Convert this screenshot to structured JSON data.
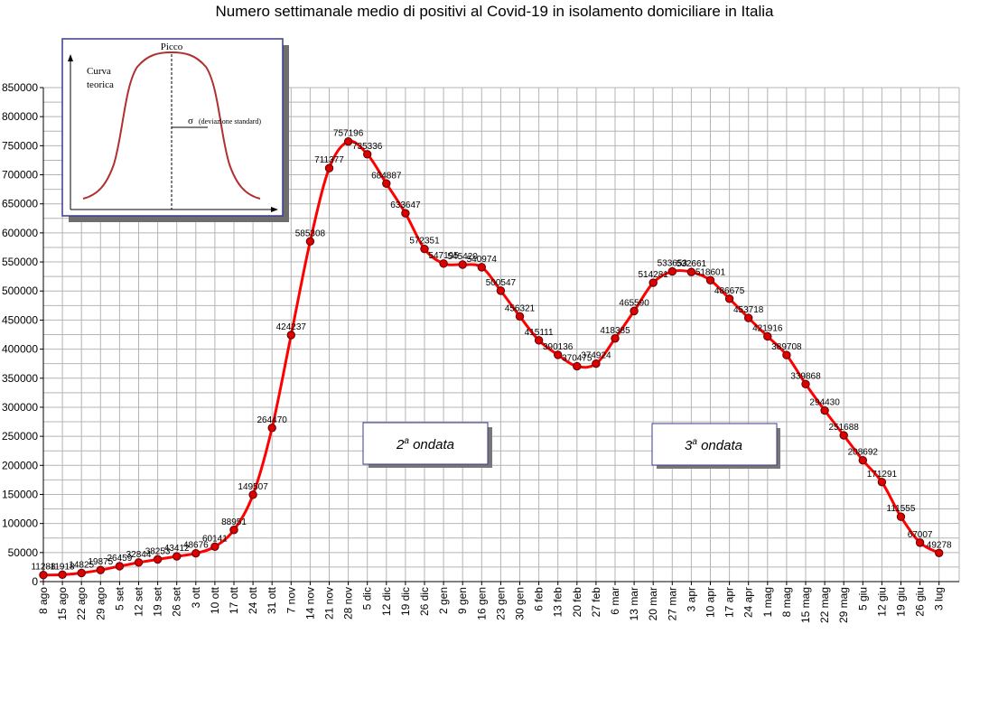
{
  "title": "Numero settimanale medio di positivi al Covid-19  in isolamento domiciliare in Italia",
  "chart_data": {
    "type": "line",
    "title": "Numero settimanale medio di positivi al Covid-19  in isolamento domiciliare in Italia",
    "xlabel": "",
    "ylabel": "",
    "ylim": [
      0,
      850000
    ],
    "yticks": [
      0,
      50000,
      100000,
      150000,
      200000,
      250000,
      300000,
      350000,
      400000,
      450000,
      500000,
      550000,
      600000,
      650000,
      700000,
      750000,
      800000,
      850000
    ],
    "grid": true,
    "categories": [
      "8 ago",
      "15 ago",
      "22 ago",
      "29 ago",
      "5 set",
      "12 set",
      "19 set",
      "26 set",
      "3 ott",
      "10 ott",
      "17 ott",
      "24 ott",
      "31 ott",
      "7 nov",
      "14 nov",
      "21 nov",
      "28 nov",
      "5 dic",
      "12 dic",
      "19 dic",
      "26 dic",
      "2 gen",
      "9 gen",
      "16 gen",
      "23 gen",
      "30 gen",
      "6 feb",
      "13 feb",
      "20 feb",
      "27 feb",
      "6 mar",
      "13 mar",
      "20 mar",
      "27 mar",
      "3 apr",
      "10 apr",
      "17 apr",
      "24 apr",
      "1 mag",
      "8 mag",
      "15 mag",
      "22 mag",
      "29 mag",
      "5 giu",
      "12 giu",
      "19 giu",
      "26 giu",
      "3 lug"
    ],
    "series": [
      {
        "color": "#ff0000",
        "marker_color": "#dd0000",
        "values": [
          11288,
          11918,
          14825,
          19875,
          26459,
          32844,
          38253,
          43412,
          48676,
          60141,
          88951,
          149507,
          264470,
          424237,
          585308,
          711377,
          757196,
          735336,
          684887,
          633647,
          572351,
          547195,
          545420,
          540974,
          500547,
          456321,
          415111,
          390136,
          370475,
          374924,
          418385,
          465590,
          514281,
          533653,
          532661,
          518601,
          486675,
          453718,
          421916,
          389708,
          339868,
          294430,
          251688,
          208692,
          171291,
          111555,
          67007,
          49278
        ],
        "labels": [
          "11288",
          "11918",
          "14825",
          "19875",
          "26459",
          "32844",
          "38253",
          "43412",
          "48676",
          "60141",
          "88951",
          "149507",
          "264470",
          "424237",
          "585308",
          "711377",
          "757196",
          "735336",
          "684887",
          "633647",
          "572351",
          "547195",
          "545420",
          "540974",
          "500547",
          "456321",
          "415111",
          "390136",
          "370475",
          "374924",
          "418385",
          "465590",
          "514281",
          "533653",
          "532661",
          "518601",
          "486675",
          "453718",
          "421916",
          "389708",
          "339868",
          "294430",
          "251688",
          "208692",
          "171291",
          "111555",
          "67007",
          "49278"
        ]
      }
    ],
    "annotations": [
      "2ª ondata",
      "3ª ondata"
    ]
  },
  "boxes": {
    "wave2": {
      "main": "2",
      "sup": "a",
      "rest": " ondata"
    },
    "wave3": {
      "main": "3",
      "sup": "a",
      "rest": " ondata"
    }
  },
  "inset": {
    "peak_label": "Picco",
    "curve_label_1": "Curva",
    "curve_label_2": "teorica",
    "sigma": "σ",
    "sigma_note": "(deviazione standard)"
  }
}
